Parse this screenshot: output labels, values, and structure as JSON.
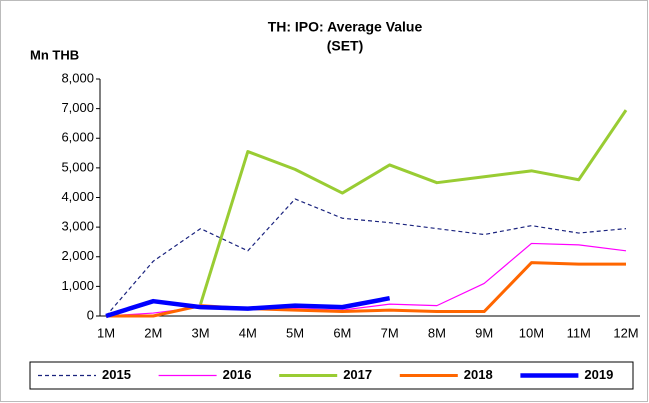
{
  "chart_data": {
    "type": "line",
    "title": "TH: IPO: Average Value",
    "subtitle": "(SET)",
    "y_label": "Mn THB",
    "categories": [
      "1M",
      "2M",
      "3M",
      "4M",
      "5M",
      "6M",
      "7M",
      "8M",
      "9M",
      "10M",
      "11M",
      "12M"
    ],
    "ylim": [
      0,
      8000
    ],
    "yticks": [
      0,
      {
        "value": 1000,
        "label": "1,000"
      },
      {
        "value": 2000,
        "label": "2,000"
      },
      {
        "value": 3000,
        "label": "3,000"
      },
      {
        "value": 4000,
        "label": "4,000"
      },
      {
        "value": 5000,
        "label": "5,000"
      },
      {
        "value": 6000,
        "label": "6,000"
      },
      {
        "value": 7000,
        "label": "7,000"
      },
      {
        "value": 8000,
        "label": "8,000"
      }
    ],
    "legend": "bottom",
    "series": [
      {
        "name": "2015",
        "color": "#1a237e",
        "dash": true,
        "width": 1.2,
        "values": [
          0,
          1850,
          2950,
          2200,
          3950,
          3300,
          3150,
          2950,
          2750,
          3050,
          2800,
          2950
        ]
      },
      {
        "name": "2016",
        "color": "#ff00ff",
        "width": 1.2,
        "values": [
          0,
          100,
          300,
          250,
          250,
          200,
          400,
          350,
          1100,
          2450,
          2400,
          2200
        ]
      },
      {
        "name": "2017",
        "color": "#99cc33",
        "width": 3,
        "values": [
          null,
          null,
          400,
          5550,
          4950,
          4150,
          5100,
          4500,
          4700,
          4900,
          4600,
          6950
        ]
      },
      {
        "name": "2018",
        "color": "#ff6600",
        "width": 3,
        "values": [
          0,
          0,
          350,
          250,
          200,
          150,
          200,
          150,
          150,
          1800,
          1750,
          1750
        ]
      },
      {
        "name": "2019",
        "color": "#0000ff",
        "width": 4.5,
        "values": [
          0,
          500,
          300,
          250,
          350,
          300,
          600,
          null,
          null,
          null,
          null,
          null
        ]
      }
    ]
  }
}
